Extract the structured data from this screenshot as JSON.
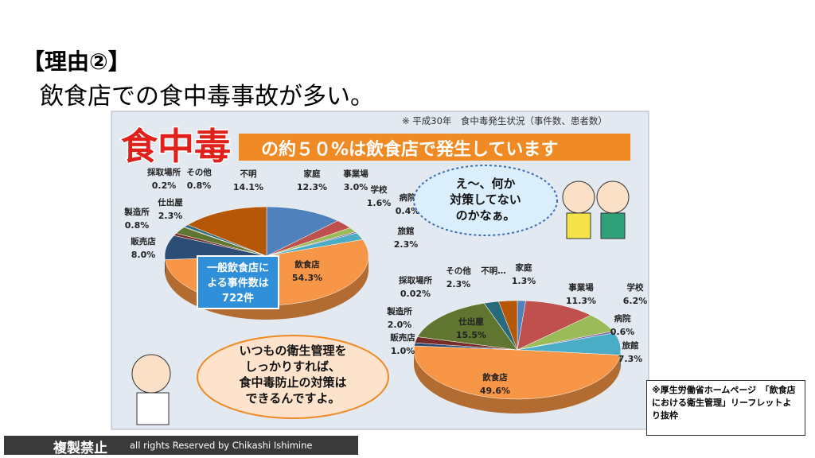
{
  "title_tag": "【理由②】",
  "heading": "飲食店での食中毒事故が多い。",
  "figure": {
    "note": "※ 平成30年　食中毒発生状況（事件数、患者数）",
    "banner_big": "食中毒",
    "banner": "の約５０%は飲食店で発生しています",
    "callout_restaurant": [
      "一般飲食店に",
      "よる事件数は",
      "722件"
    ],
    "bubble_child": [
      "え～、何か",
      "対策してない",
      "のかなぁ。"
    ],
    "bubble_teacher": [
      "いつもの衛生管理を",
      "しっかりすれば、",
      "食中毒防止の対策は",
      "できるんですよ。"
    ]
  },
  "chart_data": [
    {
      "type": "pie",
      "categories": [
        "家庭",
        "事業場",
        "学校",
        "病院",
        "旅館",
        "飲食店",
        "販売店",
        "製造所",
        "仕出屋",
        "採取場所",
        "その他",
        "不明"
      ],
      "values": [
        12.3,
        3.0,
        1.6,
        0.4,
        2.3,
        54.3,
        8.0,
        0.8,
        2.3,
        0.2,
        0.8,
        14.1
      ],
      "value_labels": [
        "12.3%",
        "3.0%",
        "1.6%",
        "0.4%",
        "2.3%",
        "54.3%",
        "8.0%",
        "0.8%",
        "2.3%",
        "0.2%",
        "0.8%",
        "14.1%"
      ],
      "colors": [
        "#4f81bd",
        "#c0504d",
        "#9bbb59",
        "#8064a2",
        "#4bacc6",
        "#f79646",
        "#2c4d75",
        "#772c2a",
        "#5f7530",
        "#4d3b62",
        "#276a7c",
        "#b65708"
      ]
    },
    {
      "type": "pie",
      "categories": [
        "家庭",
        "事業場",
        "学校",
        "病院",
        "旅館",
        "飲食店",
        "販売店",
        "製造所",
        "仕出屋",
        "採取場所",
        "その他",
        "不明…"
      ],
      "values": [
        1.3,
        11.3,
        6.2,
        0.6,
        7.3,
        49.6,
        1.0,
        2.0,
        15.5,
        0.02,
        2.3,
        2.9
      ],
      "value_labels": [
        "1.3%",
        "11.3%",
        "6.2%",
        "0.6%",
        "7.3%",
        "49.6%",
        "1.0%",
        "2.0%",
        "15.5%",
        "0.02%",
        "2.3%",
        null
      ],
      "colors": [
        "#4f81bd",
        "#c0504d",
        "#9bbb59",
        "#8064a2",
        "#4bacc6",
        "#f79646",
        "#2c4d75",
        "#772c2a",
        "#5f7530",
        "#4d3b62",
        "#276a7c",
        "#b65708"
      ]
    }
  ],
  "source": "※厚生労働省ホームページ　「飲食店における衛生管理」リーフレットより抜枠",
  "footer": {
    "label": "複製禁止",
    "copyright": "all rights Reserved by Chikashi Ishimine"
  }
}
